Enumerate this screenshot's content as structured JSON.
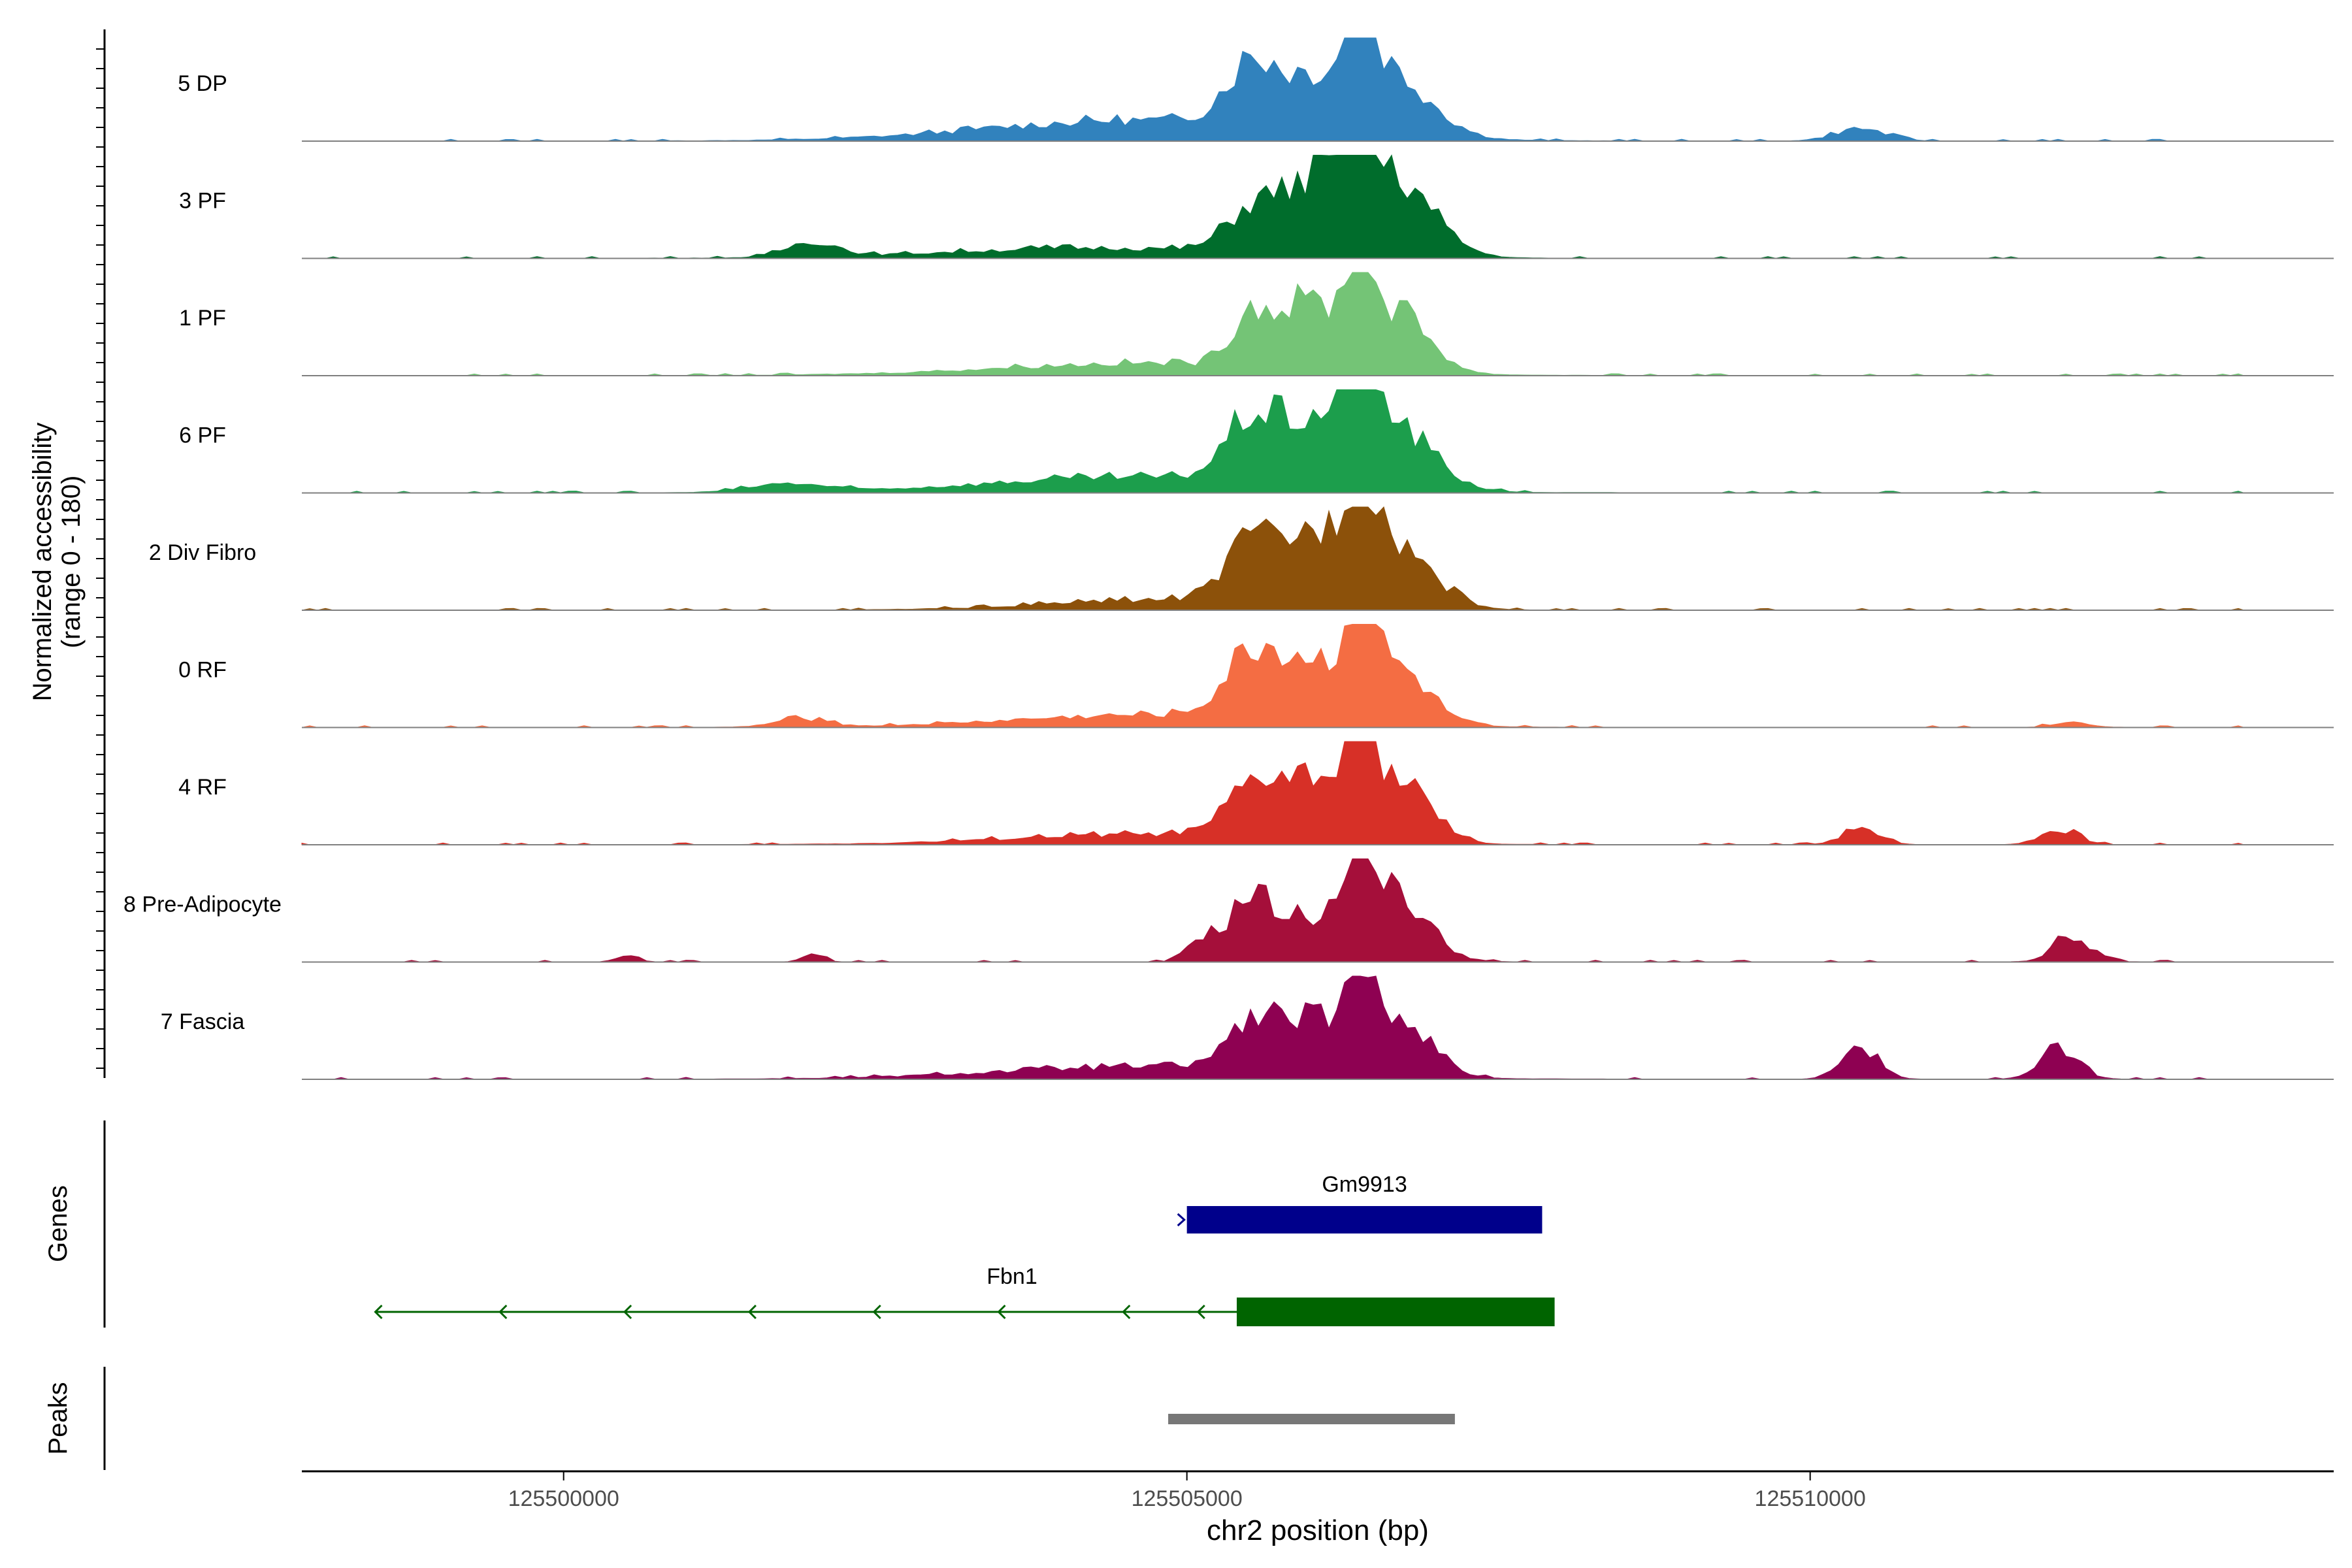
{
  "chart_data": {
    "type": "area",
    "title": "",
    "ylabel_line1": "Normalized accessibility",
    "ylabel_line2": "(range 0 - 180)",
    "y_range": [
      0,
      180
    ],
    "xlabel": "chr2 position (bp)",
    "x_range": [
      125497900,
      125514200
    ],
    "x_ticks": [
      125500000,
      125505000,
      125510000
    ],
    "x_tick_labels": [
      "125500000",
      "125505000",
      "125510000"
    ],
    "peak_center": 125506400,
    "tracks": [
      {
        "name": "5 DP",
        "color": "#3182bd",
        "peaks": [
          [
            125504600,
            0.2,
            1200
          ],
          [
            125505500,
            0.48,
            200
          ],
          [
            125506100,
            0.55,
            400
          ],
          [
            125506400,
            1.0,
            90
          ],
          [
            125506700,
            0.45,
            300
          ],
          [
            125510400,
            0.12,
            200
          ]
        ]
      },
      {
        "name": "3 PF",
        "color": "#006d2c",
        "peaks": [
          [
            125504300,
            0.1,
            1200
          ],
          [
            125502000,
            0.15,
            200
          ],
          [
            125505500,
            0.3,
            200
          ],
          [
            125506100,
            0.75,
            350
          ],
          [
            125506400,
            0.9,
            90
          ],
          [
            125506700,
            0.62,
            300
          ]
        ]
      },
      {
        "name": "1 PF",
        "color": "#74c476",
        "peaks": [
          [
            125504700,
            0.12,
            1200
          ],
          [
            125505500,
            0.42,
            150
          ],
          [
            125506000,
            0.65,
            300
          ],
          [
            125506400,
            1.0,
            90
          ],
          [
            125506700,
            0.55,
            250
          ]
        ]
      },
      {
        "name": "6 PF",
        "color": "#1c9e4c",
        "peaks": [
          [
            125504600,
            0.15,
            1200
          ],
          [
            125501800,
            0.08,
            300
          ],
          [
            125505500,
            0.45,
            200
          ],
          [
            125506100,
            0.65,
            400
          ],
          [
            125506400,
            0.88,
            100
          ],
          [
            125506700,
            0.45,
            300
          ]
        ]
      },
      {
        "name": "2 Div Fibro",
        "color": "#8c510a",
        "peaks": [
          [
            125504800,
            0.1,
            900
          ],
          [
            125505500,
            0.38,
            200
          ],
          [
            125506100,
            0.72,
            400
          ],
          [
            125506400,
            0.95,
            90
          ],
          [
            125506700,
            0.45,
            300
          ]
        ]
      },
      {
        "name": "0 RF",
        "color": "#f46d43",
        "peaks": [
          [
            125504700,
            0.12,
            1100
          ],
          [
            125501900,
            0.08,
            200
          ],
          [
            125505500,
            0.4,
            200
          ],
          [
            125506000,
            0.6,
            400
          ],
          [
            125506400,
            1.0,
            90
          ],
          [
            125506700,
            0.45,
            250
          ],
          [
            125512100,
            0.05,
            150
          ]
        ]
      },
      {
        "name": "4 RF",
        "color": "#d73027",
        "peaks": [
          [
            125504700,
            0.1,
            1100
          ],
          [
            125505500,
            0.3,
            200
          ],
          [
            125506000,
            0.6,
            350
          ],
          [
            125506400,
            1.0,
            90
          ],
          [
            125506700,
            0.55,
            250
          ],
          [
            125510400,
            0.15,
            150
          ],
          [
            125512000,
            0.15,
            150
          ]
        ]
      },
      {
        "name": "8 Pre-Adipocyte",
        "color": "#a50f3a",
        "peaks": [
          [
            125505100,
            0.2,
            100
          ],
          [
            125505500,
            0.5,
            180
          ],
          [
            125506100,
            0.45,
            400
          ],
          [
            125506400,
            0.8,
            100
          ],
          [
            125506700,
            0.5,
            250
          ],
          [
            125512100,
            0.25,
            150
          ],
          [
            125502000,
            0.08,
            80
          ],
          [
            125500500,
            0.06,
            80
          ]
        ]
      },
      {
        "name": "7 Fascia",
        "color": "#8e0152",
        "peaks": [
          [
            125504700,
            0.12,
            1200
          ],
          [
            125505500,
            0.3,
            200
          ],
          [
            125506000,
            0.5,
            350
          ],
          [
            125506400,
            0.85,
            90
          ],
          [
            125506700,
            0.55,
            250
          ],
          [
            125510400,
            0.3,
            150
          ],
          [
            125512000,
            0.3,
            150
          ]
        ]
      }
    ],
    "genes_label": "Genes",
    "genes": [
      {
        "name": "Gm9913",
        "color": "#00008b",
        "strand": "+",
        "start": 125505000,
        "end": 125507850,
        "exon_start": 125505000,
        "exon_end": 125507850,
        "arrow_at": 125505000
      },
      {
        "name": "Fbn1",
        "color": "#006400",
        "strand": "-",
        "start": 125498500,
        "end": 125507950,
        "exon_start": 125505400,
        "exon_end": 125507950,
        "arrow_positions": [
          125498500,
          125499500,
          125500500,
          125501500,
          125502500,
          125503500,
          125504500,
          125505100
        ]
      }
    ],
    "peaks_label": "Peaks",
    "peak_regions": [
      {
        "start": 125504850,
        "end": 125507150,
        "color": "#777777"
      }
    ]
  }
}
